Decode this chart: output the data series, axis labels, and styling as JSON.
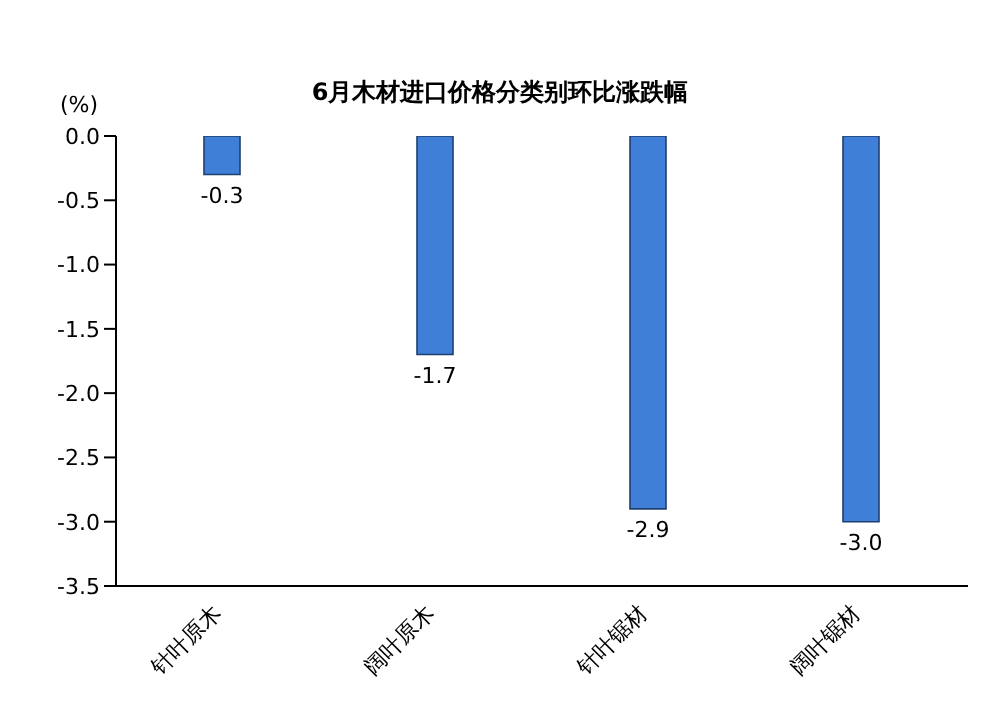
{
  "chart_data": {
    "type": "bar",
    "title": "6月木材进口价格分类别环比涨跌幅",
    "ylabel": "(%)",
    "categories": [
      "针叶原木",
      "阔叶原木",
      "针叶锯材",
      "阔叶锯材"
    ],
    "values": [
      -0.3,
      -1.7,
      -2.9,
      -3.0
    ],
    "value_labels": [
      "-0.3",
      "-1.7",
      "-2.9",
      "-3.0"
    ],
    "color": "#3f7fd8",
    "ylim": [
      -3.5,
      0
    ],
    "yticks": [
      {
        "value": 0,
        "label": "0.0"
      },
      {
        "value": -0.5,
        "label": "-0.5"
      },
      {
        "value": -1,
        "label": "-1.0"
      },
      {
        "value": -1.5,
        "label": "-1.5"
      },
      {
        "value": -2,
        "label": "-2.0"
      },
      {
        "value": -2.5,
        "label": "-2.5"
      },
      {
        "value": -3,
        "label": "-3.0"
      },
      {
        "value": -3.5,
        "label": "-3.5"
      }
    ],
    "grid": false
  }
}
